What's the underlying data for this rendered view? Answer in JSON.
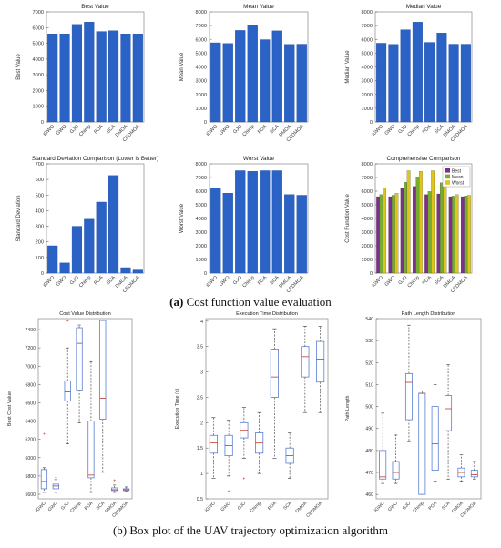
{
  "algorithms": [
    "iGWO",
    "GWO",
    "GJO",
    "Chimp",
    "POA",
    "SCA",
    "DMOA",
    "CEDMOA"
  ],
  "captions": {
    "a_label": "(a)",
    "a_text": "Cost function value evaluation",
    "b_label": "(b)",
    "b_text": "Box plot of the UAV trajectory optimization algorithm"
  },
  "colors": {
    "bar": "#2a62c6",
    "best": "#7e2f8e",
    "mean": "#77ac30",
    "worst": "#dfc41a",
    "box": "#5b7fd0"
  },
  "chart_data": [
    {
      "type": "bar",
      "title": "Best Value",
      "ylabel": "Best Value",
      "ylim": [
        0,
        7000
      ],
      "yticks": [
        0,
        1000,
        2000,
        3000,
        4000,
        5000,
        6000,
        7000
      ],
      "categories": [
        "iGWO",
        "GWO",
        "GJO",
        "Chimp",
        "POA",
        "SCA",
        "DMOA",
        "CEDMOA"
      ],
      "values": [
        5600,
        5600,
        6200,
        6350,
        5750,
        5800,
        5600,
        5600
      ]
    },
    {
      "type": "bar",
      "title": "Mean Value",
      "ylabel": "Mean Value",
      "ylim": [
        0,
        8000
      ],
      "yticks": [
        0,
        1000,
        2000,
        3000,
        4000,
        5000,
        6000,
        7000,
        8000
      ],
      "categories": [
        "iGWO",
        "GWO",
        "GJO",
        "Chimp",
        "POA",
        "SCA",
        "DMOA",
        "CEDMOA"
      ],
      "values": [
        5750,
        5700,
        6650,
        7050,
        5980,
        6620,
        5640,
        5650
      ]
    },
    {
      "type": "bar",
      "title": "Median Value",
      "ylabel": "Median Value",
      "ylim": [
        0,
        8000
      ],
      "yticks": [
        0,
        1000,
        2000,
        3000,
        4000,
        5000,
        6000,
        7000,
        8000
      ],
      "categories": [
        "iGWO",
        "GWO",
        "GJO",
        "Chimp",
        "POA",
        "SCA",
        "DMOA",
        "CEDMOA"
      ],
      "values": [
        5720,
        5640,
        6700,
        7250,
        5780,
        6460,
        5650,
        5650
      ]
    },
    {
      "type": "bar",
      "title": "Standard Deviation Comparison (Lower is Better)",
      "ylabel": "Standard Deviation",
      "ylim": [
        0,
        700
      ],
      "yticks": [
        0,
        100,
        200,
        300,
        400,
        500,
        600,
        700
      ],
      "categories": [
        "iGWO",
        "GWO",
        "GJO",
        "Chimp",
        "POA",
        "SCA",
        "DMOA",
        "CEDMOA"
      ],
      "values": [
        175,
        65,
        300,
        345,
        455,
        625,
        35,
        20
      ]
    },
    {
      "type": "bar",
      "title": "Worst Value",
      "ylabel": "Worst Value",
      "ylim": [
        0,
        8000
      ],
      "yticks": [
        0,
        1000,
        2000,
        3000,
        4000,
        5000,
        6000,
        7000,
        8000
      ],
      "categories": [
        "iGWO",
        "GWO",
        "GJO",
        "Chimp",
        "POA",
        "SCA",
        "DMOA",
        "CEDMOA"
      ],
      "values": [
        6250,
        5850,
        7500,
        7450,
        7500,
        7500,
        5750,
        5700
      ]
    },
    {
      "type": "bar",
      "title": "Comprehensive Comparison",
      "ylabel": "Cost Function Value",
      "ylim": [
        0,
        8000
      ],
      "yticks": [
        0,
        1000,
        2000,
        3000,
        4000,
        5000,
        6000,
        7000,
        8000
      ],
      "legend": "top-right",
      "categories": [
        "iGWO",
        "GWO",
        "GJO",
        "Chimp",
        "POA",
        "SCA",
        "DMOA",
        "CEDMOA"
      ],
      "series": [
        {
          "name": "Best",
          "values": [
            5600,
            5600,
            6200,
            6350,
            5750,
            5800,
            5600,
            5600
          ]
        },
        {
          "name": "Mean",
          "values": [
            5750,
            5700,
            6650,
            7050,
            5980,
            6620,
            5640,
            5650
          ]
        },
        {
          "name": "Worst",
          "values": [
            6250,
            5850,
            7500,
            7450,
            7500,
            7500,
            5750,
            5700
          ]
        }
      ]
    },
    {
      "type": "box",
      "title": "Cost Value Distribution",
      "ylabel": "Best Cost Value",
      "ylim": [
        5550,
        7520
      ],
      "yticks": [
        5600,
        5800,
        6000,
        6200,
        6400,
        6600,
        6800,
        7000,
        7200,
        7400
      ],
      "categories": [
        "iGWO",
        "GWO",
        "GJO",
        "Chimp",
        "POA",
        "SCA",
        "DMOA",
        "CEDMOA"
      ],
      "boxes": [
        {
          "min": 5620,
          "q1": 5660,
          "median": 5740,
          "q3": 5870,
          "max": 5890,
          "outliers": [
            6260
          ]
        },
        {
          "min": 5620,
          "q1": 5660,
          "median": 5690,
          "q3": 5710,
          "max": 5760,
          "outliers": [
            5780
          ]
        },
        {
          "min": 6150,
          "q1": 6620,
          "median": 6720,
          "q3": 6840,
          "max": 7200,
          "outliers": [
            7500
          ]
        },
        {
          "min": 6380,
          "q1": 6740,
          "median": 7250,
          "q3": 7420,
          "max": 7450,
          "outliers": []
        },
        {
          "min": 5620,
          "q1": 5780,
          "median": 5810,
          "q3": 6400,
          "max": 7050,
          "outliers": []
        },
        {
          "min": 5840,
          "q1": 6420,
          "median": 6650,
          "q3": 7500,
          "max": 7500,
          "outliers": []
        },
        {
          "min": 5620,
          "q1": 5640,
          "median": 5650,
          "q3": 5670,
          "max": 5700,
          "outliers": [
            5750
          ]
        },
        {
          "min": 5630,
          "q1": 5640,
          "median": 5650,
          "q3": 5660,
          "max": 5680,
          "outliers": []
        }
      ]
    },
    {
      "type": "box",
      "title": "Execution Time Distribution",
      "ylabel": "Execution Time (s)",
      "ylim": [
        0.5,
        4.05
      ],
      "yticks": [
        0.5,
        1,
        1.5,
        2,
        2.5,
        3,
        3.5,
        4
      ],
      "categories": [
        "iGWO",
        "GWO",
        "GJO",
        "Chimp",
        "POA",
        "SCA",
        "DMOA",
        "CEDMOA"
      ],
      "boxes": [
        {
          "min": 0.9,
          "q1": 1.4,
          "median": 1.6,
          "q3": 1.75,
          "max": 2.1,
          "outliers": []
        },
        {
          "min": 0.95,
          "q1": 1.35,
          "median": 1.55,
          "q3": 1.75,
          "max": 2.05,
          "outliers": [
            0.65
          ]
        },
        {
          "min": 1.3,
          "q1": 1.7,
          "median": 1.85,
          "q3": 2.0,
          "max": 2.3,
          "outliers": [
            0.9
          ]
        },
        {
          "min": 1.0,
          "q1": 1.4,
          "median": 1.6,
          "q3": 1.8,
          "max": 2.2,
          "outliers": []
        },
        {
          "min": 1.3,
          "q1": 2.5,
          "median": 2.9,
          "q3": 3.45,
          "max": 3.85,
          "outliers": []
        },
        {
          "min": 0.9,
          "q1": 1.2,
          "median": 1.35,
          "q3": 1.5,
          "max": 1.8,
          "outliers": []
        },
        {
          "min": 2.2,
          "q1": 2.9,
          "median": 3.3,
          "q3": 3.5,
          "max": 3.9,
          "outliers": []
        },
        {
          "min": 2.2,
          "q1": 2.8,
          "median": 3.25,
          "q3": 3.6,
          "max": 3.9,
          "outliers": []
        }
      ]
    },
    {
      "type": "box",
      "title": "Path Length Distribution",
      "ylabel": "Path Length",
      "ylim": [
        458,
        540
      ],
      "yticks": [
        460,
        470,
        480,
        490,
        500,
        510,
        520,
        530,
        540
      ],
      "categories": [
        "iGWO",
        "GWO",
        "GJO",
        "Chimp",
        "POA",
        "SCA",
        "DMOA",
        "CEDMOA"
      ],
      "boxes": [
        {
          "min": 465,
          "q1": 467,
          "median": 468,
          "q3": 480,
          "max": 497,
          "outliers": []
        },
        {
          "min": 465,
          "q1": 467,
          "median": 470,
          "q3": 475,
          "max": 487,
          "outliers": []
        },
        {
          "min": 484,
          "q1": 494,
          "median": 511,
          "q3": 515,
          "max": 537,
          "outliers": []
        },
        {
          "min": 460,
          "q1": 460,
          "median": 506,
          "q3": 506,
          "max": 507,
          "outliers": []
        },
        {
          "min": 466,
          "q1": 471,
          "median": 483,
          "q3": 500,
          "max": 510,
          "outliers": []
        },
        {
          "min": 467,
          "q1": 489,
          "median": 499,
          "q3": 505,
          "max": 519,
          "outliers": []
        },
        {
          "min": 466,
          "q1": 468,
          "median": 470,
          "q3": 472,
          "max": 478,
          "outliers": []
        },
        {
          "min": 467,
          "q1": 468,
          "median": 469,
          "q3": 471,
          "max": 475,
          "outliers": []
        }
      ]
    }
  ]
}
